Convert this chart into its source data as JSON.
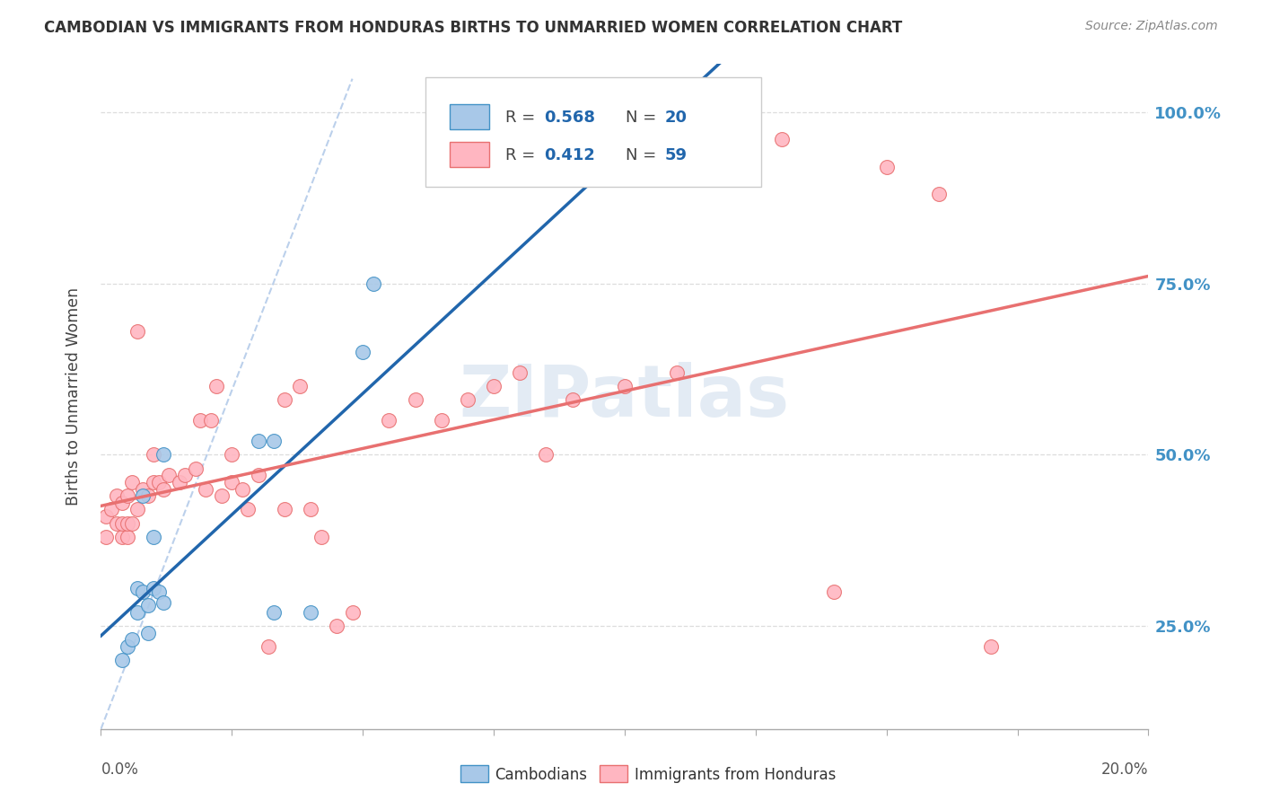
{
  "title": "CAMBODIAN VS IMMIGRANTS FROM HONDURAS BIRTHS TO UNMARRIED WOMEN CORRELATION CHART",
  "source": "Source: ZipAtlas.com",
  "ylabel": "Births to Unmarried Women",
  "ytick_labels": [
    "25.0%",
    "50.0%",
    "75.0%",
    "100.0%"
  ],
  "ytick_values": [
    0.25,
    0.5,
    0.75,
    1.0
  ],
  "xmin": 0.0,
  "xmax": 0.2,
  "ymin": 0.1,
  "ymax": 1.07,
  "legend_r_blue": "0.568",
  "legend_n_blue": "20",
  "legend_r_pink": "0.412",
  "legend_n_pink": "59",
  "label_blue": "Cambodians",
  "label_pink": "Immigrants from Honduras",
  "blue_fill": "#a8c8e8",
  "blue_edge": "#4292c6",
  "pink_fill": "#ffb6c1",
  "pink_edge": "#e87070",
  "trend_blue": "#2166ac",
  "trend_pink": "#e87070",
  "watermark": "ZIPatlas",
  "watermark_color": "#c8d8ea",
  "cambodian_x": [
    0.004,
    0.005,
    0.006,
    0.007,
    0.007,
    0.008,
    0.008,
    0.009,
    0.009,
    0.01,
    0.01,
    0.011,
    0.012,
    0.012,
    0.03,
    0.033,
    0.033,
    0.04,
    0.05,
    0.052
  ],
  "cambodian_y": [
    0.2,
    0.22,
    0.23,
    0.27,
    0.305,
    0.3,
    0.44,
    0.24,
    0.28,
    0.305,
    0.38,
    0.3,
    0.285,
    0.5,
    0.52,
    0.52,
    0.27,
    0.27,
    0.65,
    0.75
  ],
  "honduras_x": [
    0.001,
    0.001,
    0.002,
    0.003,
    0.003,
    0.004,
    0.004,
    0.004,
    0.005,
    0.005,
    0.005,
    0.006,
    0.006,
    0.007,
    0.007,
    0.008,
    0.009,
    0.01,
    0.01,
    0.011,
    0.012,
    0.013,
    0.015,
    0.016,
    0.018,
    0.019,
    0.02,
    0.021,
    0.022,
    0.023,
    0.025,
    0.025,
    0.027,
    0.028,
    0.03,
    0.032,
    0.035,
    0.035,
    0.038,
    0.04,
    0.042,
    0.045,
    0.048,
    0.055,
    0.06,
    0.065,
    0.07,
    0.075,
    0.08,
    0.085,
    0.09,
    0.1,
    0.11,
    0.12,
    0.13,
    0.14,
    0.15,
    0.16,
    0.17
  ],
  "honduras_y": [
    0.38,
    0.41,
    0.42,
    0.4,
    0.44,
    0.38,
    0.4,
    0.43,
    0.38,
    0.4,
    0.44,
    0.46,
    0.4,
    0.42,
    0.68,
    0.45,
    0.44,
    0.46,
    0.5,
    0.46,
    0.45,
    0.47,
    0.46,
    0.47,
    0.48,
    0.55,
    0.45,
    0.55,
    0.6,
    0.44,
    0.46,
    0.5,
    0.45,
    0.42,
    0.47,
    0.22,
    0.58,
    0.42,
    0.6,
    0.42,
    0.38,
    0.25,
    0.27,
    0.55,
    0.58,
    0.55,
    0.58,
    0.6,
    0.62,
    0.5,
    0.58,
    0.6,
    0.62,
    0.95,
    0.96,
    0.3,
    0.92,
    0.88,
    0.22
  ]
}
